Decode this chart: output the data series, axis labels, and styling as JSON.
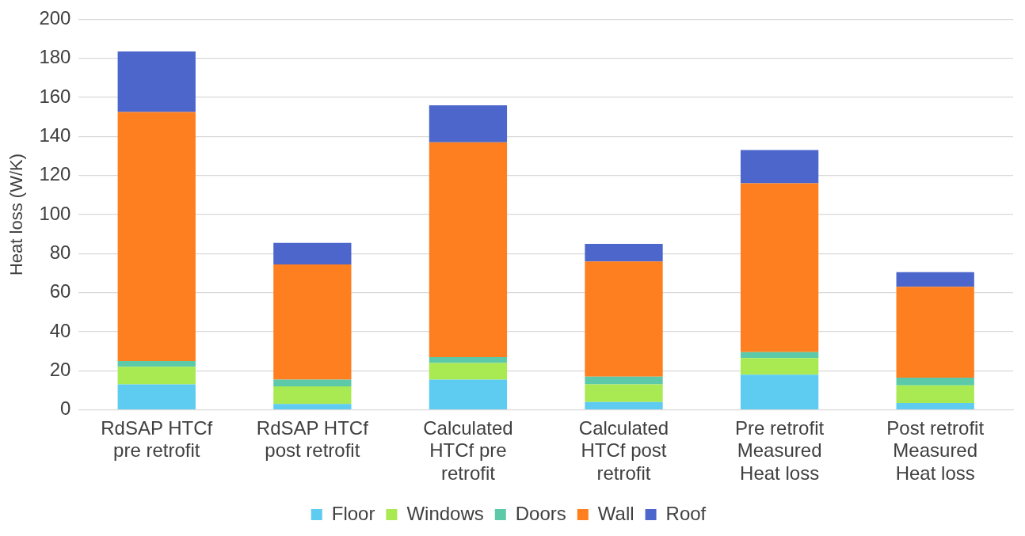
{
  "chart_data": {
    "type": "bar",
    "stacked": true,
    "ylabel": "Heat loss (W/K)",
    "categories": [
      [
        "RdSAP HTCf",
        "pre retrofit"
      ],
      [
        "RdSAP HTCf",
        "post retrofit"
      ],
      [
        "Calculated",
        "HTCf pre",
        "retrofit"
      ],
      [
        "Calculated",
        "HTCf post",
        "retrofit"
      ],
      [
        "Pre retrofit",
        "Measured",
        "Heat loss"
      ],
      [
        "Post retrofit",
        "Measured",
        "Heat loss"
      ]
    ],
    "series": [
      {
        "name": "Floor",
        "color": "#5ecbf0",
        "values": [
          13,
          3,
          15.5,
          4,
          18,
          3.5
        ]
      },
      {
        "name": "Windows",
        "color": "#a9e951",
        "values": [
          9,
          9,
          8.5,
          9,
          8.5,
          9
        ]
      },
      {
        "name": "Doors",
        "color": "#5ccaa9",
        "values": [
          3,
          3.5,
          3,
          4,
          3,
          4
        ]
      },
      {
        "name": "Wall",
        "color": "#fd7f20",
        "values": [
          127.5,
          59,
          110,
          59,
          86.5,
          46.5
        ]
      },
      {
        "name": "Roof",
        "color": "#4d66cc",
        "values": [
          31,
          11,
          19,
          9,
          17,
          7.5
        ]
      }
    ],
    "ylim": [
      0,
      200
    ],
    "yticks": [
      0,
      20,
      40,
      60,
      80,
      100,
      120,
      140,
      160,
      180,
      200
    ],
    "grid": "y",
    "legend": "bottom"
  }
}
